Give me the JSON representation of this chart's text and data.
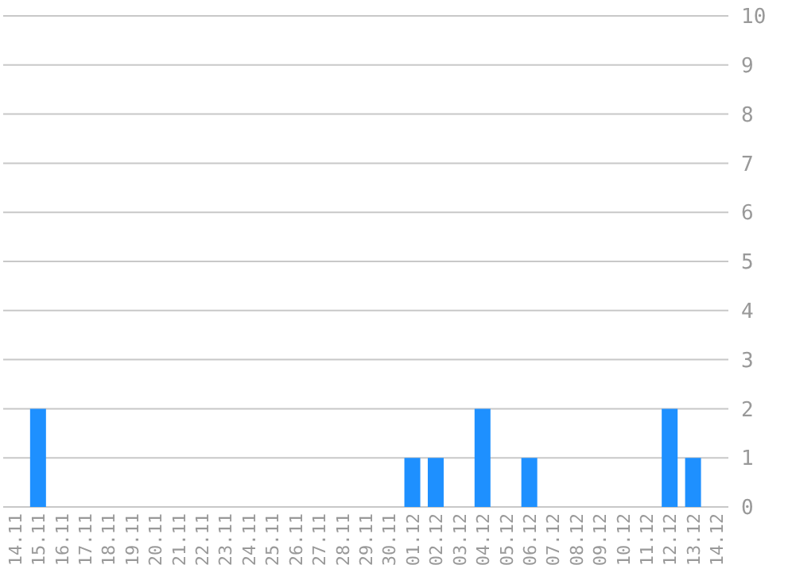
{
  "chart_data": {
    "type": "bar",
    "categories": [
      "14.11",
      "15.11",
      "16.11",
      "17.11",
      "18.11",
      "19.11",
      "20.11",
      "21.11",
      "22.11",
      "23.11",
      "24.11",
      "25.11",
      "26.11",
      "27.11",
      "28.11",
      "29.11",
      "30.11",
      "01.12",
      "02.12",
      "03.12",
      "04.12",
      "05.12",
      "06.12",
      "07.12",
      "08.12",
      "09.12",
      "10.12",
      "11.12",
      "12.12",
      "13.12",
      "14.12"
    ],
    "values": [
      0,
      2,
      0,
      0,
      0,
      0,
      0,
      0,
      0,
      0,
      0,
      0,
      0,
      0,
      0,
      0,
      0,
      1,
      1,
      0,
      2,
      0,
      1,
      0,
      0,
      0,
      0,
      0,
      2,
      1,
      0
    ],
    "color": "#1e90ff",
    "ylim": [
      0,
      10
    ],
    "yticks": [
      0,
      1,
      2,
      3,
      4,
      5,
      6,
      7,
      8,
      9,
      10
    ],
    "grid": "y"
  }
}
